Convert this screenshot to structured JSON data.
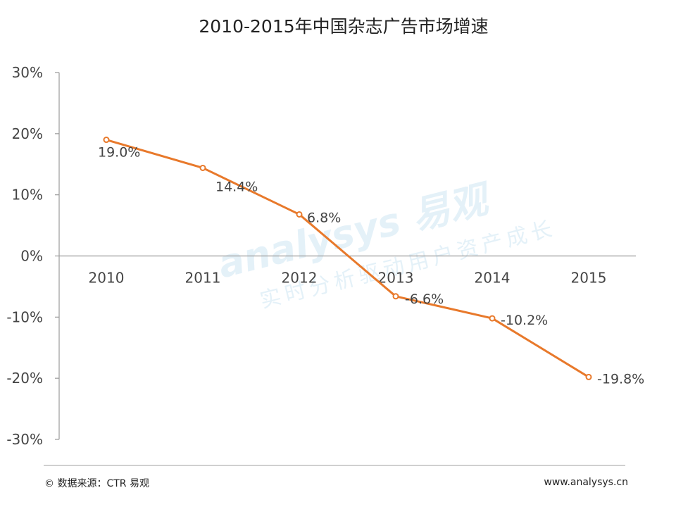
{
  "chart_data": {
    "type": "line",
    "title": "2010-2015年中国杂志广告市场增速",
    "xlabel": "",
    "ylabel": "",
    "categories": [
      "2010",
      "2011",
      "2012",
      "2013",
      "2014",
      "2015"
    ],
    "series": [
      {
        "values": [
          19.0,
          14.4,
          6.8,
          -6.6,
          -10.2,
          -19.8
        ]
      }
    ],
    "data_labels": [
      "19.0%",
      "14.4%",
      "6.8%",
      "-6.6%",
      "-10.2%",
      "-19.8%"
    ],
    "ylim": [
      -30,
      30
    ],
    "y_ticks": [
      30,
      20,
      10,
      0,
      -10,
      -20,
      -30
    ],
    "y_tick_labels": [
      "30%",
      "20%",
      "10%",
      "0%",
      "-10%",
      "-20%",
      "-30%"
    ],
    "grid": false,
    "legend": "none",
    "series_color": "#E8792B"
  },
  "watermark": {
    "brand": "analysys 易观",
    "slogan": "实时分析驱动用户资产成长"
  },
  "footer": {
    "source": "© 数据来源：CTR 易观",
    "url": "www.analysys.cn"
  }
}
